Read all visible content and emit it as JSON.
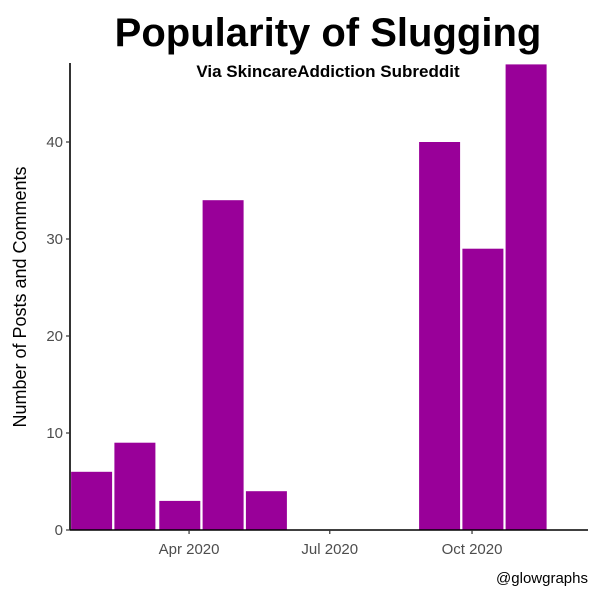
{
  "chart_data": {
    "type": "bar",
    "title": "Popularity of Slugging",
    "subtitle": "Via SkincareAddiction Subreddit",
    "xlabel": "",
    "ylabel": "Number of Posts and Comments",
    "caption": "@glowgraphs",
    "x_axis": {
      "type": "date",
      "range": [
        "2020-01-15",
        "2020-12-15"
      ],
      "ticks": [
        {
          "value": "2020-04-01",
          "label": "Apr 2020"
        },
        {
          "value": "2020-07-01",
          "label": "Jul 2020"
        },
        {
          "value": "2020-10-01",
          "label": "Oct 2020"
        }
      ]
    },
    "y_axis": {
      "ylim": [
        0,
        48
      ],
      "ticks": [
        0,
        10,
        20,
        30,
        40
      ]
    },
    "bar_color": "#990099",
    "bars": [
      {
        "date": "2020-01-29",
        "value": 6
      },
      {
        "date": "2020-02-26",
        "value": 9
      },
      {
        "date": "2020-03-26",
        "value": 3
      },
      {
        "date": "2020-04-23",
        "value": 34
      },
      {
        "date": "2020-05-21",
        "value": 4
      },
      {
        "date": "2020-06-18",
        "value": 0
      },
      {
        "date": "2020-07-16",
        "value": 0
      },
      {
        "date": "2020-08-13",
        "value": 0
      },
      {
        "date": "2020-09-10",
        "value": 40
      },
      {
        "date": "2020-10-08",
        "value": 29
      },
      {
        "date": "2020-11-05",
        "value": 48
      }
    ],
    "grid": false,
    "legend": "none"
  }
}
